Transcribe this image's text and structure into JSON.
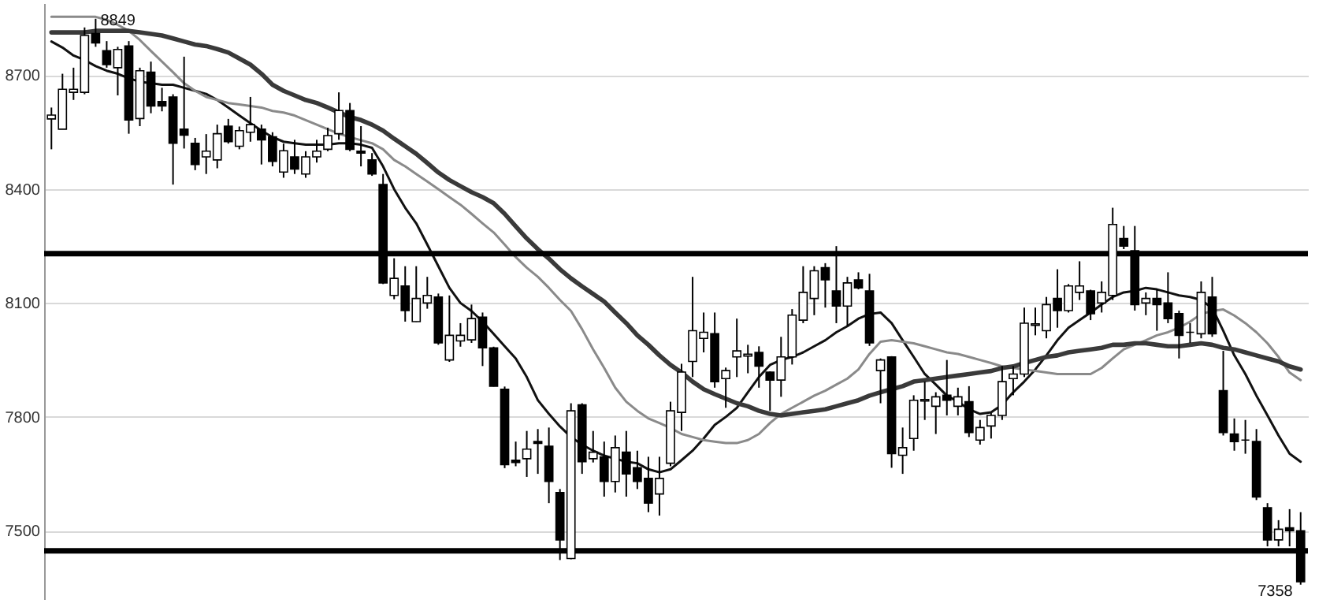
{
  "chart_data": {
    "type": "candlestick",
    "categories": [
      null,
      null,
      null,
      null,
      null,
      null,
      null,
      null,
      null,
      null,
      null,
      null,
      null,
      null,
      null,
      null,
      null,
      null,
      null,
      null,
      null,
      null,
      null,
      null,
      null,
      null,
      null,
      null,
      null,
      null,
      null,
      null,
      null,
      null,
      null,
      null,
      null,
      null,
      null,
      null,
      null,
      null,
      null,
      null,
      null,
      null,
      null,
      null,
      null,
      null,
      null,
      null,
      null,
      null,
      null,
      null,
      null,
      null,
      null,
      null,
      null,
      null,
      null,
      null,
      null,
      null,
      null,
      null,
      null,
      null,
      null,
      null,
      null,
      null,
      null,
      null,
      null,
      null,
      null,
      null,
      null,
      null,
      null,
      null,
      null,
      null,
      null,
      null,
      null,
      null,
      null,
      null,
      null,
      null,
      null,
      null,
      null,
      null,
      null,
      null,
      null,
      null,
      null,
      null,
      null,
      null,
      null,
      null,
      null,
      null,
      null,
      null,
      null,
      null
    ],
    "ohlc": [
      [
        8585,
        8615,
        8505,
        8595
      ],
      [
        8558,
        8704,
        8558,
        8663
      ],
      [
        8655,
        8720,
        8635,
        8663
      ],
      [
        8655,
        8826,
        8650,
        8805
      ],
      [
        8810,
        8849,
        8775,
        8785
      ],
      [
        8765,
        8790,
        8720,
        8728
      ],
      [
        8720,
        8775,
        8647,
        8768
      ],
      [
        8777,
        8790,
        8546,
        8582
      ],
      [
        8586,
        8720,
        8566,
        8712
      ],
      [
        8708,
        8736,
        8600,
        8619
      ],
      [
        8631,
        8667,
        8605,
        8619
      ],
      [
        8643,
        8650,
        8412,
        8521
      ],
      [
        8558,
        8749,
        8507,
        8542
      ],
      [
        8521,
        8535,
        8450,
        8465
      ],
      [
        8485,
        8545,
        8440,
        8500
      ],
      [
        8477,
        8570,
        8455,
        8546
      ],
      [
        8566,
        8585,
        8520,
        8525
      ],
      [
        8513,
        8565,
        8505,
        8554
      ],
      [
        8550,
        8643,
        8525,
        8570
      ],
      [
        8558,
        8570,
        8465,
        8530
      ],
      [
        8538,
        8550,
        8460,
        8473
      ],
      [
        8445,
        8520,
        8430,
        8501
      ],
      [
        8485,
        8530,
        8440,
        8453
      ],
      [
        8440,
        8500,
        8430,
        8485
      ],
      [
        8485,
        8530,
        8470,
        8500
      ],
      [
        8505,
        8562,
        8500,
        8541
      ],
      [
        8546,
        8655,
        8530,
        8607
      ],
      [
        8607,
        8627,
        8500,
        8505
      ],
      [
        8500,
        8566,
        8460,
        8495
      ],
      [
        8477,
        8495,
        8435,
        8440
      ],
      [
        8412,
        8440,
        8150,
        8153
      ],
      [
        8120,
        8218,
        8110,
        8165
      ],
      [
        8145,
        8197,
        8051,
        8080
      ],
      [
        8051,
        8197,
        8050,
        8112
      ],
      [
        8100,
        8169,
        8085,
        8120
      ],
      [
        8116,
        8125,
        7990,
        7995
      ],
      [
        7950,
        8120,
        7945,
        8015
      ],
      [
        8000,
        8047,
        7985,
        8015
      ],
      [
        8003,
        8096,
        7995,
        8059
      ],
      [
        8063,
        8075,
        7934,
        7982
      ],
      [
        7982,
        7985,
        7880,
        7881
      ],
      [
        7873,
        7880,
        7665,
        7674
      ],
      [
        7686,
        7735,
        7670,
        7680
      ],
      [
        7690,
        7763,
        7642,
        7715
      ],
      [
        7735,
        7768,
        7650,
        7730
      ],
      [
        7723,
        7772,
        7573,
        7630
      ],
      [
        7601,
        7610,
        7423,
        7476
      ],
      [
        7427,
        7836,
        7425,
        7816
      ],
      [
        7832,
        7836,
        7650,
        7682
      ],
      [
        7690,
        7763,
        7680,
        7707
      ],
      [
        7695,
        7735,
        7590,
        7630
      ],
      [
        7630,
        7751,
        7601,
        7719
      ],
      [
        7707,
        7763,
        7590,
        7650
      ],
      [
        7666,
        7711,
        7610,
        7630
      ],
      [
        7638,
        7695,
        7549,
        7573
      ],
      [
        7597,
        7695,
        7540,
        7638
      ],
      [
        7678,
        7840,
        7670,
        7816
      ],
      [
        7812,
        7940,
        7763,
        7918
      ],
      [
        7946,
        8169,
        7905,
        8027
      ],
      [
        8007,
        8075,
        7970,
        8023
      ],
      [
        8019,
        8075,
        7877,
        7893
      ],
      [
        7901,
        7930,
        7824,
        7922
      ],
      [
        7958,
        8059,
        7905,
        7974
      ],
      [
        7960,
        7990,
        7915,
        7965
      ],
      [
        7970,
        7986,
        7877,
        7934
      ],
      [
        7918,
        7920,
        7816,
        7897
      ],
      [
        7897,
        8011,
        7853,
        7958
      ],
      [
        7958,
        8084,
        7938,
        8068
      ],
      [
        8055,
        8197,
        8047,
        8128
      ],
      [
        8112,
        8197,
        8068,
        8185
      ],
      [
        8193,
        8205,
        8088,
        8161
      ],
      [
        8132,
        8250,
        8047,
        8092
      ],
      [
        8092,
        8169,
        8039,
        8153
      ],
      [
        8161,
        8181,
        8136,
        8140
      ],
      [
        8132,
        8177,
        7987,
        7995
      ],
      [
        7922,
        7954,
        7836,
        7950
      ],
      [
        7958,
        7960,
        7666,
        7703
      ],
      [
        7699,
        7772,
        7650,
        7719
      ],
      [
        7743,
        7857,
        7711,
        7844
      ],
      [
        7842,
        7893,
        7792,
        7846
      ],
      [
        7828,
        7865,
        7755,
        7853
      ],
      [
        7857,
        7950,
        7804,
        7844
      ],
      [
        7828,
        7877,
        7804,
        7853
      ],
      [
        7840,
        7881,
        7747,
        7759
      ],
      [
        7739,
        7792,
        7727,
        7772
      ],
      [
        7776,
        7810,
        7743,
        7804
      ],
      [
        7804,
        7934,
        7792,
        7893
      ],
      [
        7901,
        7934,
        7857,
        7913
      ],
      [
        7913,
        8088,
        7905,
        8047
      ],
      [
        8041,
        8088,
        8015,
        8045
      ],
      [
        8027,
        8116,
        8007,
        8096
      ],
      [
        8112,
        8189,
        8035,
        8080
      ],
      [
        8080,
        8150,
        8075,
        8145
      ],
      [
        8128,
        8210,
        8108,
        8145
      ],
      [
        8132,
        8135,
        8055,
        8072
      ],
      [
        8100,
        8157,
        8075,
        8128
      ],
      [
        8120,
        8351,
        8108,
        8307
      ],
      [
        8270,
        8303,
        8242,
        8250
      ],
      [
        8238,
        8303,
        8080,
        8096
      ],
      [
        8100,
        8128,
        8068,
        8112
      ],
      [
        8112,
        8136,
        8027,
        8096
      ],
      [
        8100,
        8181,
        8047,
        8059
      ],
      [
        8072,
        8080,
        7954,
        8015
      ],
      [
        8023,
        8047,
        7995,
        8023
      ],
      [
        8019,
        8157,
        8007,
        8128
      ],
      [
        8116,
        8169,
        8011,
        8019
      ],
      [
        7869,
        7974,
        7751,
        7759
      ],
      [
        7755,
        7796,
        7711,
        7735
      ],
      [
        7739,
        7792,
        7703,
        7739
      ],
      [
        7735,
        7768,
        7581,
        7589
      ],
      [
        7561,
        7573,
        7459,
        7476
      ],
      [
        7476,
        7528,
        7459,
        7504
      ],
      [
        7508,
        7557,
        7459,
        7500
      ],
      [
        7500,
        7549,
        7358,
        7366
      ]
    ],
    "series": [
      {
        "type": "line",
        "color": "#111111",
        "values": [
          8789,
          8773,
          8752,
          8740,
          8724,
          8712,
          8704,
          8692,
          8683,
          8679,
          8675,
          8675,
          8667,
          8659,
          8651,
          8635,
          8615,
          8594,
          8574,
          8554,
          8537,
          8525,
          8521,
          8517,
          8517,
          8517,
          8521,
          8521,
          8517,
          8509,
          8460,
          8400,
          8351,
          8310,
          8254,
          8197,
          8140,
          8100,
          8079,
          8051,
          8019,
          7986,
          7954,
          7905,
          7844,
          7808,
          7775,
          7747,
          7727,
          7711,
          7698,
          7690,
          7682,
          7678,
          7662,
          7654,
          7662,
          7686,
          7711,
          7743,
          7779,
          7800,
          7824,
          7865,
          7905,
          7937,
          7950,
          7958,
          7970,
          7986,
          8002,
          8023,
          8039,
          8059,
          8071,
          8075,
          8047,
          8002,
          7958,
          7913,
          7885,
          7856,
          7840,
          7820,
          7808,
          7812,
          7832,
          7865,
          7893,
          7925,
          7962,
          8002,
          8035,
          8055,
          8075,
          8096,
          8116,
          8128,
          8132,
          8140,
          8136,
          8128,
          8120,
          8116,
          8108,
          8087,
          8027,
          7962,
          7913,
          7856,
          7804,
          7751,
          7703,
          7682
        ]
      },
      {
        "type": "line",
        "color": "#8a8a8a",
        "values": [
          8854,
          8854,
          8854,
          8854,
          8854,
          8846,
          8833,
          8817,
          8793,
          8764,
          8736,
          8708,
          8679,
          8659,
          8643,
          8635,
          8627,
          8623,
          8619,
          8615,
          8606,
          8602,
          8594,
          8582,
          8570,
          8558,
          8546,
          8537,
          8529,
          8521,
          8505,
          8477,
          8460,
          8440,
          8420,
          8400,
          8379,
          8359,
          8335,
          8310,
          8286,
          8254,
          8221,
          8193,
          8169,
          8140,
          8108,
          8079,
          8031,
          7978,
          7929,
          7877,
          7840,
          7816,
          7796,
          7784,
          7771,
          7755,
          7747,
          7739,
          7735,
          7731,
          7731,
          7739,
          7755,
          7784,
          7808,
          7824,
          7840,
          7856,
          7869,
          7885,
          7901,
          7925,
          7966,
          7998,
          8002,
          7998,
          7994,
          7986,
          7978,
          7970,
          7966,
          7958,
          7950,
          7942,
          7933,
          7929,
          7925,
          7921,
          7917,
          7913,
          7913,
          7913,
          7913,
          7929,
          7954,
          7978,
          7990,
          8002,
          8015,
          8023,
          8035,
          8051,
          8071,
          8079,
          8083,
          8067,
          8047,
          8023,
          7994,
          7958,
          7917,
          7897
        ]
      },
      {
        "type": "line",
        "color": "#3a3a3a",
        "values": [
          8813,
          8813,
          8813,
          8813,
          8817,
          8817,
          8817,
          8817,
          8813,
          8809,
          8805,
          8797,
          8789,
          8781,
          8777,
          8769,
          8760,
          8744,
          8728,
          8704,
          8675,
          8659,
          8647,
          8635,
          8627,
          8615,
          8602,
          8590,
          8582,
          8570,
          8554,
          8533,
          8513,
          8493,
          8469,
          8444,
          8424,
          8408,
          8392,
          8379,
          8363,
          8335,
          8302,
          8270,
          8242,
          8217,
          8189,
          8165,
          8144,
          8124,
          8104,
          8075,
          8047,
          8015,
          7990,
          7962,
          7937,
          7917,
          7893,
          7873,
          7860,
          7848,
          7836,
          7828,
          7816,
          7808,
          7804,
          7808,
          7812,
          7816,
          7820,
          7828,
          7836,
          7844,
          7856,
          7865,
          7873,
          7881,
          7893,
          7897,
          7901,
          7905,
          7909,
          7913,
          7917,
          7921,
          7929,
          7933,
          7942,
          7950,
          7958,
          7962,
          7970,
          7974,
          7978,
          7982,
          7990,
          7990,
          7994,
          7994,
          7990,
          7986,
          7986,
          7990,
          7994,
          7990,
          7982,
          7978,
          7970,
          7962,
          7954,
          7946,
          7933,
          7925
        ]
      }
    ],
    "ylim": [
      7320,
      8890
    ],
    "yticks": [
      7500,
      7800,
      8100,
      8400,
      8700
    ],
    "grid": "y",
    "tick_labels": "y",
    "ref_lines": [
      {
        "axis": "y",
        "value": 8230,
        "color": "#000000"
      },
      {
        "axis": "y",
        "value": 7447,
        "color": "#000000"
      }
    ],
    "annotations": [
      {
        "text": "8849",
        "y": 8849
      },
      "7358"
    ]
  }
}
